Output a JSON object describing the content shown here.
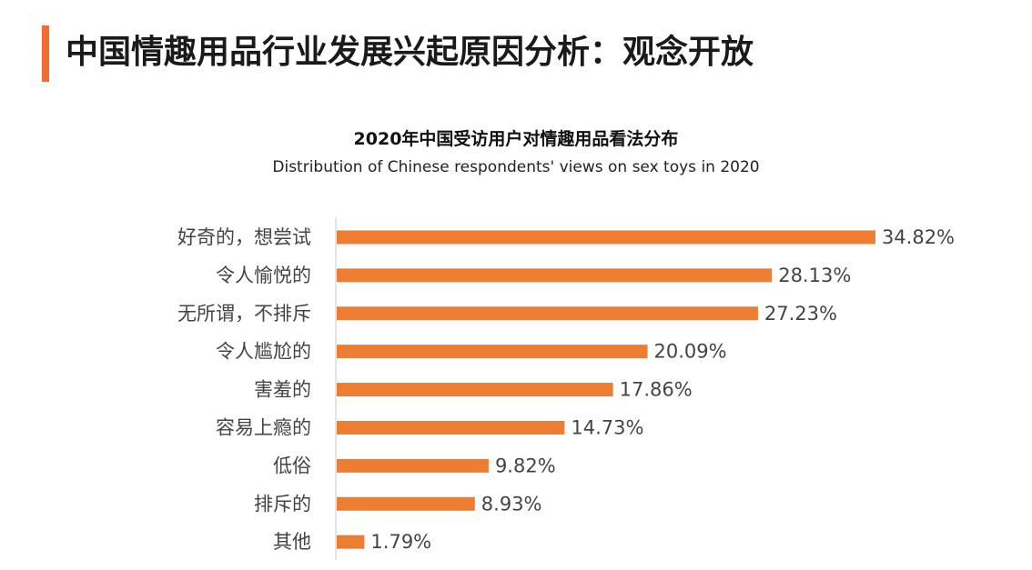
{
  "header": {
    "title": "中国情趣用品行业发展兴起原因分析：观念开放"
  },
  "colors": {
    "accent": "#ef6c35",
    "bar": "#ed7d31"
  },
  "chart_data": {
    "type": "bar",
    "orientation": "horizontal",
    "title": "2020年中国受访用户对情趣用品看法分布",
    "subtitle": "Distribution of Chinese respondents' views on sex toys in 2020",
    "categories": [
      "好奇的，想尝试",
      "令人愉悦的",
      "无所谓，不排斥",
      "令人尴尬的",
      "害羞的",
      "容易上瘾的",
      "低俗",
      "排斥的",
      "其他"
    ],
    "values": [
      34.82,
      28.13,
      27.23,
      20.09,
      17.86,
      14.73,
      9.82,
      8.93,
      1.79
    ],
    "value_labels": [
      "34.82%",
      "28.13%",
      "27.23%",
      "20.09%",
      "17.86%",
      "14.73%",
      "9.82%",
      "8.93%",
      "1.79%"
    ],
    "xlim": [
      0,
      35
    ],
    "grid": false,
    "legend": "none"
  }
}
